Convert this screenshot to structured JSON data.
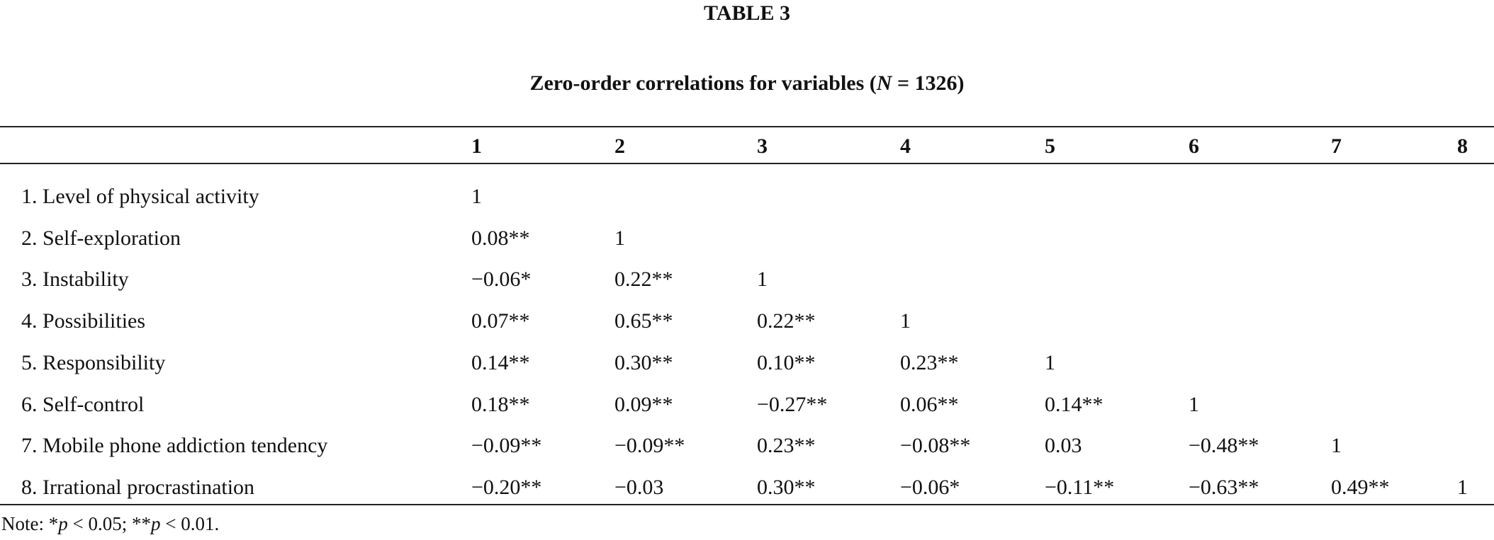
{
  "header": {
    "label": "TABLE 3",
    "title": [
      "Zero-order correlations for variables (",
      "N",
      " = 1326)"
    ]
  },
  "table": {
    "columns": [
      "1",
      "2",
      "3",
      "4",
      "5",
      "6",
      "7",
      "8"
    ],
    "rows": [
      [
        "1. Level of physical activity",
        "1"
      ],
      [
        "2. Self-exploration",
        "0.08**",
        "1"
      ],
      [
        "3. Instability",
        "−0.06*",
        "0.22**",
        "1"
      ],
      [
        "4. Possibilities",
        "0.07**",
        "0.65**",
        "0.22**",
        "1"
      ],
      [
        "5. Responsibility",
        "0.14**",
        "0.30**",
        "0.10**",
        "0.23**",
        "1"
      ],
      [
        "6. Self-control",
        "0.18**",
        "0.09**",
        "−0.27**",
        "0.06**",
        "0.14**",
        "1"
      ],
      [
        "7. Mobile phone addiction tendency",
        "−0.09**",
        "−0.09**",
        "0.23**",
        "−0.08**",
        "0.03",
        "−0.48**",
        "1"
      ],
      [
        "8. Irrational procrastination",
        "−0.20**",
        "−0.03",
        "0.30**",
        "−0.06*",
        "−0.11**",
        "−0.63**",
        "0.49**",
        "1"
      ]
    ]
  },
  "note": [
    "Note: *",
    "p",
    " < 0.05; **",
    "p",
    " < 0.01."
  ]
}
